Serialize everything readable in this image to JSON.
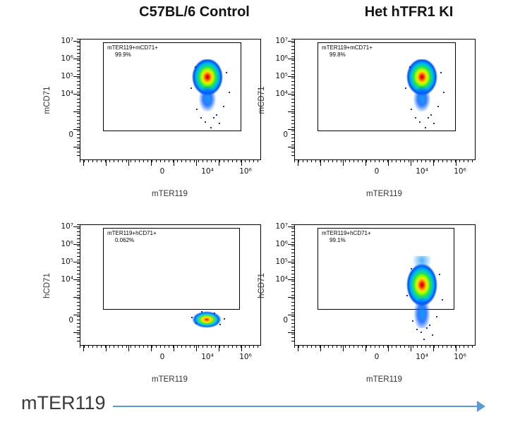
{
  "figure": {
    "columns": [
      {
        "title": "C57BL/6 Control"
      },
      {
        "title": "Het hTFR1 KI"
      }
    ],
    "bottom_axis": {
      "label": "mTER119"
    },
    "colors": {
      "arrow": "#5b9bd5",
      "jet_colormap": [
        "#00007f",
        "#0000ff",
        "#00ffff",
        "#00ff00",
        "#ffff00",
        "#ff7f00",
        "#ff0000"
      ]
    }
  },
  "chart_data": [
    {
      "type": "scatter",
      "title": "C57BL/6 Control",
      "xlabel": "mTER119",
      "ylabel": "mCD71",
      "x_ticks": [
        "0",
        "10⁴",
        "10⁶"
      ],
      "y_ticks": [
        "10⁷",
        "10⁶",
        "10⁵",
        "10⁴",
        "0"
      ],
      "axis_scale": "biexponential log",
      "gate": {
        "label": "mTER119+mCD71+",
        "percent": "99.9%",
        "percent_value": 99.9
      },
      "population": {
        "x_center": "~10⁴",
        "y_center": "~10⁵",
        "shape": "dense teardrop cluster inside gate, jet density colors"
      },
      "legend": "none",
      "grid": false
    },
    {
      "type": "scatter",
      "title": "Het hTFR1 KI",
      "xlabel": "mTER119",
      "ylabel": "mCD71",
      "x_ticks": [
        "0",
        "10⁴",
        "10⁶"
      ],
      "y_ticks": [
        "10⁷",
        "10⁶",
        "10⁵",
        "10⁴",
        "0"
      ],
      "axis_scale": "biexponential log",
      "gate": {
        "label": "mTER119+mCD71+",
        "percent": "99.8%",
        "percent_value": 99.8
      },
      "population": {
        "x_center": "~10⁴",
        "y_center": "~10⁵",
        "shape": "dense teardrop cluster inside gate, jet density colors"
      },
      "legend": "none",
      "grid": false
    },
    {
      "type": "scatter",
      "title": "C57BL/6 Control",
      "xlabel": "mTER119",
      "ylabel": "hCD71",
      "x_ticks": [
        "0",
        "10⁴",
        "10⁶"
      ],
      "y_ticks": [
        "10⁷",
        "10⁶",
        "10⁵",
        "10⁴",
        "0"
      ],
      "axis_scale": "biexponential log",
      "gate": {
        "label": "mTER119+hCD71+",
        "percent": "0.062%",
        "percent_value": 0.062
      },
      "population": {
        "x_center": "~10⁴",
        "y_center": "~0",
        "shape": "small compact cluster below gate near hCD71 = 0"
      },
      "legend": "none",
      "grid": false
    },
    {
      "type": "scatter",
      "title": "Het hTFR1 KI",
      "xlabel": "mTER119",
      "ylabel": "hCD71",
      "x_ticks": [
        "0",
        "10⁴",
        "10⁶"
      ],
      "y_ticks": [
        "10⁷",
        "10⁶",
        "10⁵",
        "10⁴",
        "0"
      ],
      "axis_scale": "biexponential log",
      "gate": {
        "label": "mTER119+hCD71+",
        "percent": "99.1%",
        "percent_value": 99.1
      },
      "population": {
        "x_center": "~10⁴",
        "y_center": "~10⁴–10⁵",
        "shape": "tall teardrop cluster inside gate, jet density colors"
      },
      "legend": "none",
      "grid": false
    }
  ]
}
